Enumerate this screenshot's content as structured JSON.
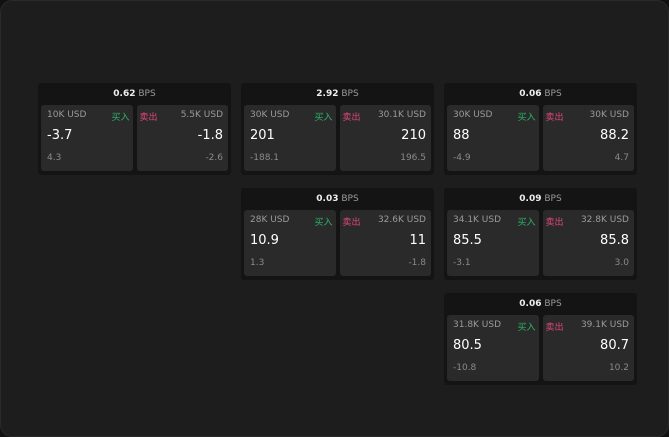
{
  "buy_label": "买入",
  "sell_label": "卖出",
  "unit": "BPS",
  "colors": {
    "buy": "#2bb36a",
    "sell": "#e0457b"
  },
  "cards": [
    {
      "spread": "0.62",
      "bid": {
        "size": "10K USD",
        "price": "-3.7",
        "change": "4.3"
      },
      "ask": {
        "size": "5.5K USD",
        "price": "-1.8",
        "change": "-2.6"
      }
    },
    {
      "spread": "2.92",
      "bid": {
        "size": "30K USD",
        "price": "201",
        "change": "-188.1"
      },
      "ask": {
        "size": "30.1K USD",
        "price": "210",
        "change": "196.5"
      }
    },
    {
      "spread": "0.06",
      "bid": {
        "size": "30K USD",
        "price": "88",
        "change": "-4.9"
      },
      "ask": {
        "size": "30K USD",
        "price": "88.2",
        "change": "4.7"
      }
    },
    {
      "spread": "0.03",
      "bid": {
        "size": "28K USD",
        "price": "10.9",
        "change": "1.3"
      },
      "ask": {
        "size": "32.6K USD",
        "price": "11",
        "change": "-1.8"
      }
    },
    {
      "spread": "0.09",
      "bid": {
        "size": "34.1K USD",
        "price": "85.5",
        "change": "-3.1"
      },
      "ask": {
        "size": "32.8K USD",
        "price": "85.8",
        "change": "3.0"
      }
    },
    {
      "spread": "0.06",
      "bid": {
        "size": "31.8K USD",
        "price": "80.5",
        "change": "-10.8"
      },
      "ask": {
        "size": "39.1K USD",
        "price": "80.7",
        "change": "10.2"
      }
    }
  ]
}
